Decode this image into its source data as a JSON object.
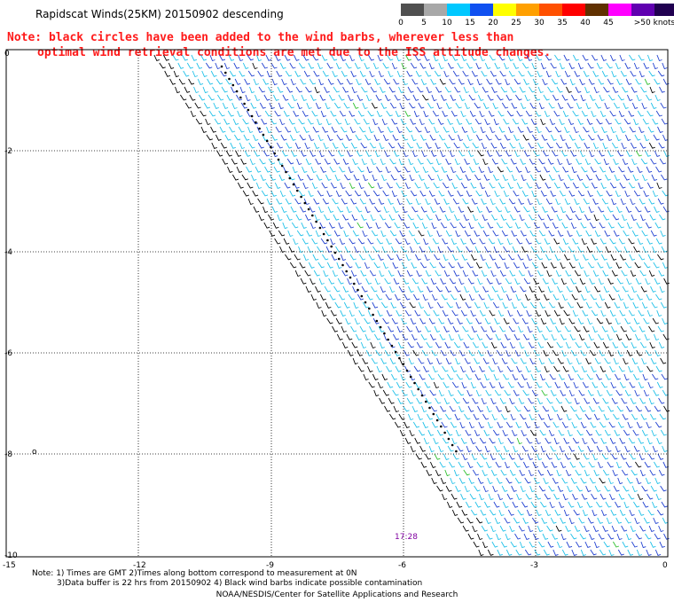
{
  "title": "Rapidscat Winds(25KM) 20150902 descending",
  "note": {
    "line1": "Note: black circles have been added to the wind barbs, wherever less than",
    "line2": "optimal wind retrieval conditions are met due to the ISS attitude changes."
  },
  "legend": {
    "labels": [
      "0",
      "5",
      "10",
      "15",
      "20",
      "25",
      "30",
      "35",
      "40",
      "45",
      ">50 knots"
    ],
    "colors": [
      "#505050",
      "#a8a8a8",
      "#00c8ff",
      "#1050f0",
      "#ffff00",
      "#ffa000",
      "#ff5000",
      "#ff0000",
      "#603000",
      "#ff00ff",
      "#6000b0",
      "#200050"
    ]
  },
  "map": {
    "x_ticks": [
      "-15",
      "-12",
      "-9",
      "-6",
      "-3",
      "0"
    ],
    "y_ticks": [
      "0",
      "-2",
      "-4",
      "-6",
      "-8",
      "-10"
    ],
    "time_label": "17:28",
    "marker": "o",
    "colors": {
      "grid": "#000000",
      "cyan_barb": "#20c0e8",
      "blue_barb": "#2040d0",
      "black_barb": "#000000",
      "green_barb": "#30c030"
    }
  },
  "footer": {
    "note1": "Note: 1) Times are GMT 2)Times along bottom correspond to measurement at 0N",
    "note2": "3)Data buffer is 22 hrs from 20150902 4) Black wind barbs indicate possible contamination",
    "credit": "NOAA/NESDIS/Center for Satellite Applications and Research"
  }
}
